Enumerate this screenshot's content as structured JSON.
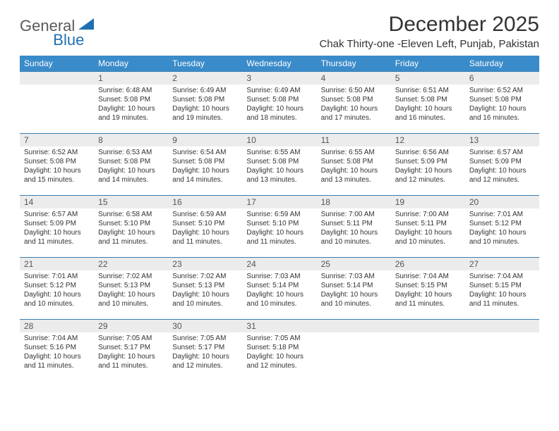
{
  "logo": {
    "part1": "General",
    "part2": "Blue"
  },
  "title": "December 2025",
  "location": "Chak Thirty-one -Eleven Left, Punjab, Pakistan",
  "colors": {
    "header_bg": "#3a8bc9",
    "header_text": "#ffffff",
    "row_border": "#3a7db0",
    "daynum_bg": "#ececec",
    "daynum_text": "#555555",
    "body_text": "#333333",
    "logo_gray": "#5a5a5a",
    "logo_blue": "#1f6fb2",
    "page_bg": "#ffffff"
  },
  "dayHeaders": [
    "Sunday",
    "Monday",
    "Tuesday",
    "Wednesday",
    "Thursday",
    "Friday",
    "Saturday"
  ],
  "weeks": [
    [
      null,
      {
        "n": "1",
        "sr": "6:48 AM",
        "ss": "5:08 PM",
        "dl": "10 hours and 19 minutes."
      },
      {
        "n": "2",
        "sr": "6:49 AM",
        "ss": "5:08 PM",
        "dl": "10 hours and 19 minutes."
      },
      {
        "n": "3",
        "sr": "6:49 AM",
        "ss": "5:08 PM",
        "dl": "10 hours and 18 minutes."
      },
      {
        "n": "4",
        "sr": "6:50 AM",
        "ss": "5:08 PM",
        "dl": "10 hours and 17 minutes."
      },
      {
        "n": "5",
        "sr": "6:51 AM",
        "ss": "5:08 PM",
        "dl": "10 hours and 16 minutes."
      },
      {
        "n": "6",
        "sr": "6:52 AM",
        "ss": "5:08 PM",
        "dl": "10 hours and 16 minutes."
      }
    ],
    [
      {
        "n": "7",
        "sr": "6:52 AM",
        "ss": "5:08 PM",
        "dl": "10 hours and 15 minutes."
      },
      {
        "n": "8",
        "sr": "6:53 AM",
        "ss": "5:08 PM",
        "dl": "10 hours and 14 minutes."
      },
      {
        "n": "9",
        "sr": "6:54 AM",
        "ss": "5:08 PM",
        "dl": "10 hours and 14 minutes."
      },
      {
        "n": "10",
        "sr": "6:55 AM",
        "ss": "5:08 PM",
        "dl": "10 hours and 13 minutes."
      },
      {
        "n": "11",
        "sr": "6:55 AM",
        "ss": "5:08 PM",
        "dl": "10 hours and 13 minutes."
      },
      {
        "n": "12",
        "sr": "6:56 AM",
        "ss": "5:09 PM",
        "dl": "10 hours and 12 minutes."
      },
      {
        "n": "13",
        "sr": "6:57 AM",
        "ss": "5:09 PM",
        "dl": "10 hours and 12 minutes."
      }
    ],
    [
      {
        "n": "14",
        "sr": "6:57 AM",
        "ss": "5:09 PM",
        "dl": "10 hours and 11 minutes."
      },
      {
        "n": "15",
        "sr": "6:58 AM",
        "ss": "5:10 PM",
        "dl": "10 hours and 11 minutes."
      },
      {
        "n": "16",
        "sr": "6:59 AM",
        "ss": "5:10 PM",
        "dl": "10 hours and 11 minutes."
      },
      {
        "n": "17",
        "sr": "6:59 AM",
        "ss": "5:10 PM",
        "dl": "10 hours and 11 minutes."
      },
      {
        "n": "18",
        "sr": "7:00 AM",
        "ss": "5:11 PM",
        "dl": "10 hours and 10 minutes."
      },
      {
        "n": "19",
        "sr": "7:00 AM",
        "ss": "5:11 PM",
        "dl": "10 hours and 10 minutes."
      },
      {
        "n": "20",
        "sr": "7:01 AM",
        "ss": "5:12 PM",
        "dl": "10 hours and 10 minutes."
      }
    ],
    [
      {
        "n": "21",
        "sr": "7:01 AM",
        "ss": "5:12 PM",
        "dl": "10 hours and 10 minutes."
      },
      {
        "n": "22",
        "sr": "7:02 AM",
        "ss": "5:13 PM",
        "dl": "10 hours and 10 minutes."
      },
      {
        "n": "23",
        "sr": "7:02 AM",
        "ss": "5:13 PM",
        "dl": "10 hours and 10 minutes."
      },
      {
        "n": "24",
        "sr": "7:03 AM",
        "ss": "5:14 PM",
        "dl": "10 hours and 10 minutes."
      },
      {
        "n": "25",
        "sr": "7:03 AM",
        "ss": "5:14 PM",
        "dl": "10 hours and 10 minutes."
      },
      {
        "n": "26",
        "sr": "7:04 AM",
        "ss": "5:15 PM",
        "dl": "10 hours and 11 minutes."
      },
      {
        "n": "27",
        "sr": "7:04 AM",
        "ss": "5:15 PM",
        "dl": "10 hours and 11 minutes."
      }
    ],
    [
      {
        "n": "28",
        "sr": "7:04 AM",
        "ss": "5:16 PM",
        "dl": "10 hours and 11 minutes."
      },
      {
        "n": "29",
        "sr": "7:05 AM",
        "ss": "5:17 PM",
        "dl": "10 hours and 11 minutes."
      },
      {
        "n": "30",
        "sr": "7:05 AM",
        "ss": "5:17 PM",
        "dl": "10 hours and 12 minutes."
      },
      {
        "n": "31",
        "sr": "7:05 AM",
        "ss": "5:18 PM",
        "dl": "10 hours and 12 minutes."
      },
      null,
      null,
      null
    ]
  ],
  "labels": {
    "sunrise": "Sunrise:",
    "sunset": "Sunset:",
    "daylight": "Daylight:"
  }
}
